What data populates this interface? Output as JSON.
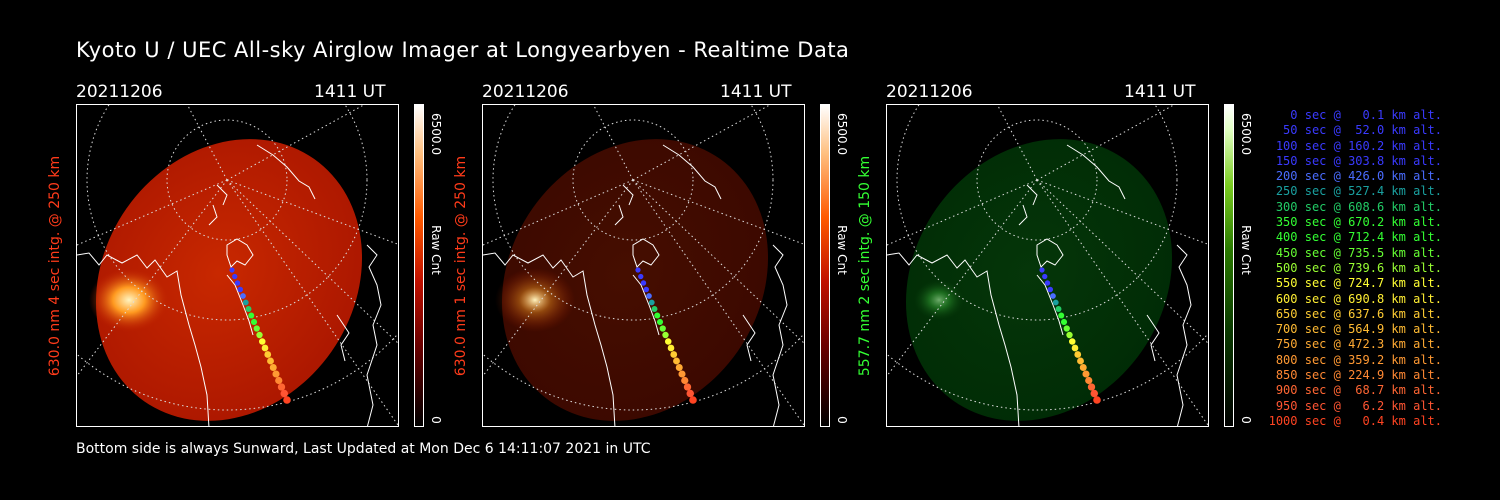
{
  "title": "Kyoto U / UEC All-sky Airglow Imager at Longyearbyen - Realtime Data",
  "footer": "Bottom side is always Sunward, Last Updated at Mon Dec  6 14:11:07 2021 in UTC",
  "colors": {
    "red_label": "#ff3b1a",
    "green_label": "#33ff33"
  },
  "panels": [
    {
      "date": "20211206",
      "time": "1411 UT",
      "vlabel": "630.0 nm  4 sec intg. @ 250 km",
      "vcolor": "#ff3b1a",
      "cmax": "6500.0",
      "cmin": "0",
      "cunit": "Raw Cnt",
      "tint": "red",
      "intensity": 1.0
    },
    {
      "date": "20211206",
      "time": "1411 UT",
      "vlabel": "630.0 nm  1 sec intg. @ 250 km",
      "vcolor": "#ff3b1a",
      "cmax": "6500.0",
      "cmin": "0",
      "cunit": "Raw Cnt",
      "tint": "red",
      "intensity": 0.35
    },
    {
      "date": "20211206",
      "time": "1411 UT",
      "vlabel": "557.7 nm  2 sec intg. @ 150 km",
      "vcolor": "#33ff33",
      "cmax": "6500.0",
      "cmin": "0",
      "cunit": "Raw Cnt",
      "tint": "green",
      "intensity": 0.45
    }
  ],
  "legend": [
    {
      "text": "   0 sec @   0.1 km alt.",
      "color": "#3a3aff"
    },
    {
      "text": "  50 sec @  52.0 km alt.",
      "color": "#3a3aff"
    },
    {
      "text": " 100 sec @ 160.2 km alt.",
      "color": "#3a3aff"
    },
    {
      "text": " 150 sec @ 303.8 km alt.",
      "color": "#3a3aff"
    },
    {
      "text": " 200 sec @ 426.0 km alt.",
      "color": "#4a6cff"
    },
    {
      "text": " 250 sec @ 527.4 km alt.",
      "color": "#1aa0a0"
    },
    {
      "text": " 300 sec @ 608.6 km alt.",
      "color": "#22cc66"
    },
    {
      "text": " 350 sec @ 670.2 km alt.",
      "color": "#33ff33"
    },
    {
      "text": " 400 sec @ 712.4 km alt.",
      "color": "#33ff33"
    },
    {
      "text": " 450 sec @ 735.5 km alt.",
      "color": "#66ff33"
    },
    {
      "text": " 500 sec @ 739.6 km alt.",
      "color": "#99ff33"
    },
    {
      "text": " 550 sec @ 724.7 km alt.",
      "color": "#ffff33"
    },
    {
      "text": " 600 sec @ 690.8 km alt.",
      "color": "#ffee33"
    },
    {
      "text": " 650 sec @ 637.6 km alt.",
      "color": "#ffcc33"
    },
    {
      "text": " 700 sec @ 564.9 km alt.",
      "color": "#ffbb33"
    },
    {
      "text": " 750 sec @ 472.3 km alt.",
      "color": "#ffaa33"
    },
    {
      "text": " 800 sec @ 359.2 km alt.",
      "color": "#ff9933"
    },
    {
      "text": " 850 sec @ 224.9 km alt.",
      "color": "#ff8833"
    },
    {
      "text": " 900 sec @  68.7 km alt.",
      "color": "#ff6633"
    },
    {
      "text": " 950 sec @   6.2 km alt.",
      "color": "#ff5533"
    },
    {
      "text": "1000 sec @   0.4 km alt.",
      "color": "#ff4422"
    }
  ]
}
